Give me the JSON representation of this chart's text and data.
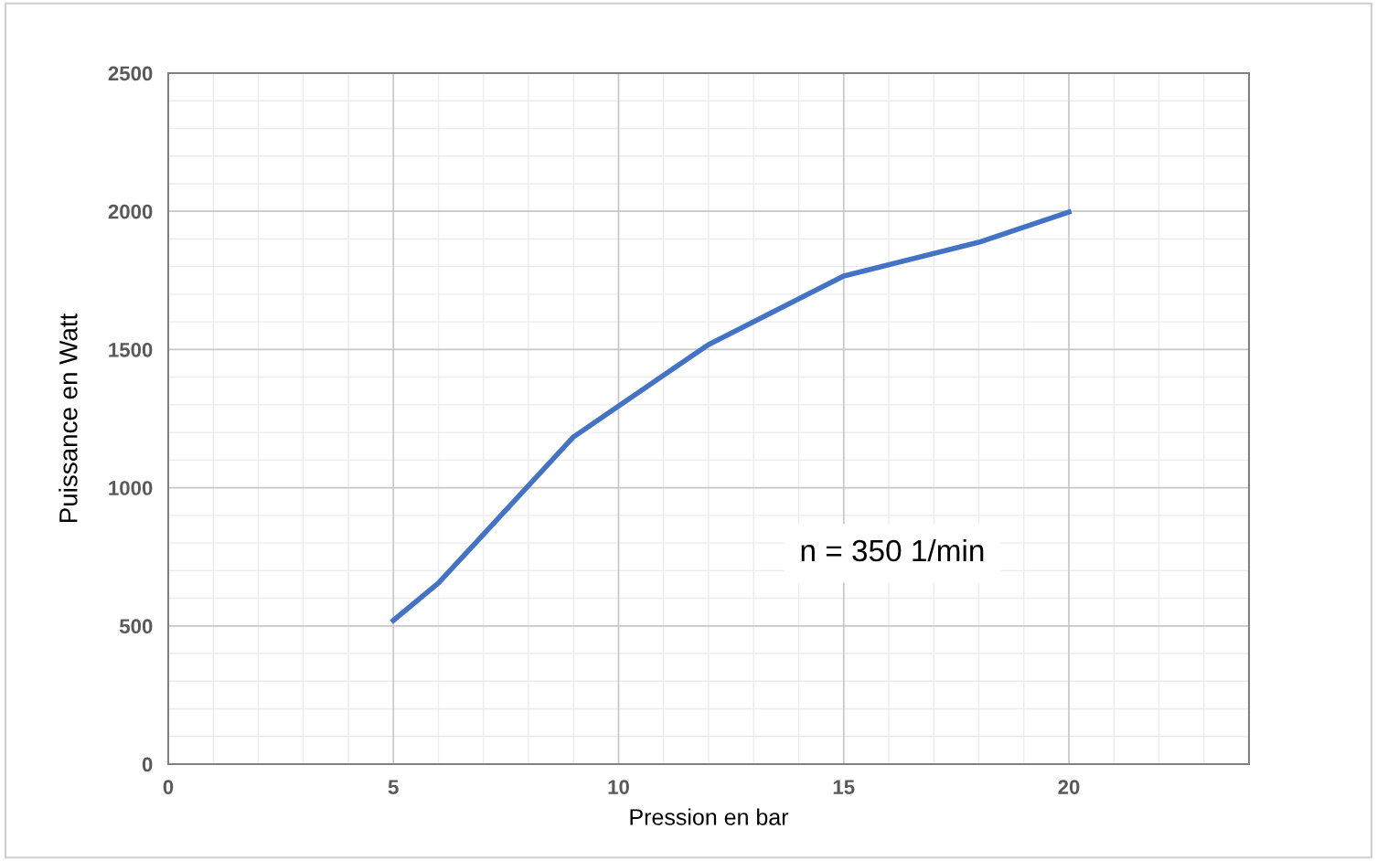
{
  "chart_data": {
    "type": "line",
    "xlabel": "Pression en bar",
    "ylabel": "Puissance en Watt",
    "x": [
      5,
      6,
      9,
      12,
      15,
      18,
      20
    ],
    "series": [
      {
        "color": "#4472c4",
        "values": [
          520,
          655,
          1184,
          1518,
          1766,
          1888,
          1997
        ]
      }
    ],
    "xlim": [
      0,
      24
    ],
    "xticks": [
      0,
      5,
      10,
      15,
      20
    ],
    "ylim": [
      0,
      2500
    ],
    "yticks": [
      0,
      500,
      1000,
      1500,
      2000,
      2500
    ],
    "grid": true,
    "marker": "none",
    "line_style": "solid",
    "annotations": [
      "n = 350 1/min"
    ]
  }
}
